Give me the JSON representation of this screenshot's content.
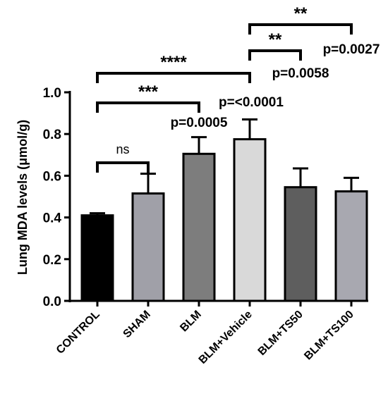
{
  "chart_data": {
    "type": "bar",
    "ylabel": "Lung MDA levels (μmol/g)",
    "xlabel": "",
    "title": "",
    "ylim": [
      0,
      1.0
    ],
    "y_ticks": [
      0.0,
      0.2,
      0.4,
      0.6,
      0.8,
      1.0
    ],
    "y_tick_labels": [
      "0.0",
      "0.2",
      "0.4",
      "0.6",
      "0.8",
      "1.0"
    ],
    "categories": [
      "CONTROL",
      "SHAM",
      "BLM",
      "BLM+Vehicle",
      "BLM+TS50",
      "BLM+TS100"
    ],
    "values": [
      0.41,
      0.515,
      0.705,
      0.775,
      0.545,
      0.525
    ],
    "errors": [
      0.01,
      0.095,
      0.08,
      0.095,
      0.09,
      0.065
    ],
    "bar_colors": [
      "#000000",
      "#a0a0a8",
      "#7d7d7d",
      "#d9d9d9",
      "#5e5e5e",
      "#a8a8b0"
    ],
    "grid": false,
    "significance": [
      {
        "from": 0,
        "to": 1,
        "stars": "ns",
        "p": ""
      },
      {
        "from": 0,
        "to": 2,
        "stars": "***",
        "p": "p=0.0005"
      },
      {
        "from": 0,
        "to": 3,
        "stars": "****",
        "p": "p=<0.0001"
      },
      {
        "from": 3,
        "to": 4,
        "stars": "**",
        "p": "p=0.0058"
      },
      {
        "from": 3,
        "to": 5,
        "stars": "**",
        "p": "p=0.0027"
      }
    ]
  }
}
